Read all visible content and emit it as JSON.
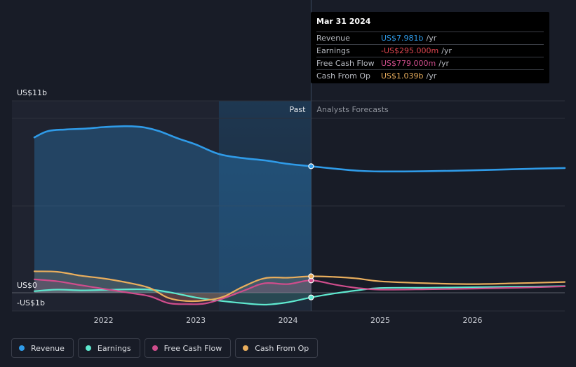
{
  "colors": {
    "revenue": "#2f9be8",
    "earnings": "#5ee8cf",
    "free_cash_flow": "#cf4d8c",
    "cash_from_op": "#e9ae5d",
    "background": "#181c27",
    "past_shade": "#1f2330"
  },
  "tooltip": {
    "date": "Mar 31 2024",
    "rows": [
      {
        "label": "Revenue",
        "value": "US$7.981b",
        "unit": "/yr",
        "color": "#2f9be8"
      },
      {
        "label": "Earnings",
        "value": "-US$295.000m",
        "unit": "/yr",
        "color": "#e0464f"
      },
      {
        "label": "Free Cash Flow",
        "value": "US$779.000m",
        "unit": "/yr",
        "color": "#cf4d8c"
      },
      {
        "label": "Cash From Op",
        "value": "US$1.039b",
        "unit": "/yr",
        "color": "#e9ae5d"
      }
    ]
  },
  "legend": [
    {
      "label": "Revenue",
      "color": "#2f9be8"
    },
    {
      "label": "Earnings",
      "color": "#5ee8cf"
    },
    {
      "label": "Free Cash Flow",
      "color": "#cf4d8c"
    },
    {
      "label": "Cash From Op",
      "color": "#e9ae5d"
    }
  ],
  "chart_data": {
    "type": "line",
    "title": "",
    "y_unit": "US$ billions",
    "ylim": [
      -1,
      11
    ],
    "y_tick_labels": [
      {
        "value": 11,
        "label": "US$11b"
      },
      {
        "value": 0,
        "label": "US$0"
      },
      {
        "value": -1,
        "label": "-US$1b"
      }
    ],
    "xlim": [
      2021.25,
      2027.0
    ],
    "x_ticks": [
      2022,
      2023,
      2024,
      2025,
      2026
    ],
    "x_tick_labels": [
      "2022",
      "2023",
      "2024",
      "2025",
      "2026"
    ],
    "divider_x": 2024.25,
    "forecast_band_start": 2023.25,
    "past_label": "Past",
    "forecast_label": "Analysts Forecasts",
    "series": [
      {
        "name": "Revenue",
        "key": "revenue",
        "x": [
          2021.25,
          2021.4,
          2021.6,
          2021.8,
          2022.0,
          2022.2,
          2022.3,
          2022.45,
          2022.6,
          2022.8,
          2023.0,
          2023.25,
          2023.5,
          2023.75,
          2024.0,
          2024.25,
          2024.5,
          2024.75,
          2025.0,
          2025.5,
          2026.0,
          2026.5,
          2027.0
        ],
        "values": [
          9.8,
          10.2,
          10.3,
          10.35,
          10.45,
          10.5,
          10.5,
          10.42,
          10.2,
          9.75,
          9.35,
          8.75,
          8.5,
          8.35,
          8.13,
          7.98,
          7.83,
          7.7,
          7.65,
          7.67,
          7.72,
          7.8,
          7.87
        ]
      },
      {
        "name": "Earnings",
        "key": "earnings",
        "x": [
          2021.25,
          2021.5,
          2021.75,
          2022.0,
          2022.3,
          2022.5,
          2022.7,
          2023.0,
          2023.25,
          2023.5,
          2023.75,
          2024.0,
          2024.25,
          2024.5,
          2024.75,
          2025.0,
          2025.5,
          2026.0,
          2026.5,
          2027.0
        ],
        "values": [
          0.1,
          0.2,
          0.15,
          0.18,
          0.22,
          0.2,
          0.05,
          -0.3,
          -0.5,
          -0.65,
          -0.75,
          -0.6,
          -0.295,
          -0.05,
          0.15,
          0.3,
          0.32,
          0.35,
          0.38,
          0.42
        ]
      },
      {
        "name": "Free Cash Flow",
        "key": "free_cash_flow",
        "x": [
          2021.25,
          2021.5,
          2021.75,
          2022.0,
          2022.25,
          2022.5,
          2022.7,
          2022.9,
          2023.1,
          2023.3,
          2023.55,
          2023.75,
          2024.0,
          2024.25,
          2024.5,
          2024.75,
          2025.0,
          2025.5,
          2026.0,
          2026.5,
          2027.0
        ],
        "values": [
          0.85,
          0.72,
          0.48,
          0.25,
          0.02,
          -0.22,
          -0.65,
          -0.72,
          -0.68,
          -0.35,
          0.2,
          0.6,
          0.55,
          0.779,
          0.52,
          0.3,
          0.2,
          0.22,
          0.26,
          0.32,
          0.4
        ]
      },
      {
        "name": "Cash From Op",
        "key": "cash_from_op",
        "x": [
          2021.25,
          2021.5,
          2021.75,
          2022.0,
          2022.25,
          2022.5,
          2022.7,
          2022.9,
          2023.1,
          2023.3,
          2023.5,
          2023.75,
          2024.0,
          2024.25,
          2024.5,
          2024.75,
          2025.0,
          2025.5,
          2026.0,
          2026.5,
          2027.0
        ],
        "values": [
          1.35,
          1.32,
          1.08,
          0.9,
          0.65,
          0.3,
          -0.32,
          -0.52,
          -0.48,
          -0.25,
          0.35,
          0.92,
          0.95,
          1.039,
          1.0,
          0.9,
          0.72,
          0.6,
          0.55,
          0.6,
          0.68
        ]
      }
    ]
  }
}
